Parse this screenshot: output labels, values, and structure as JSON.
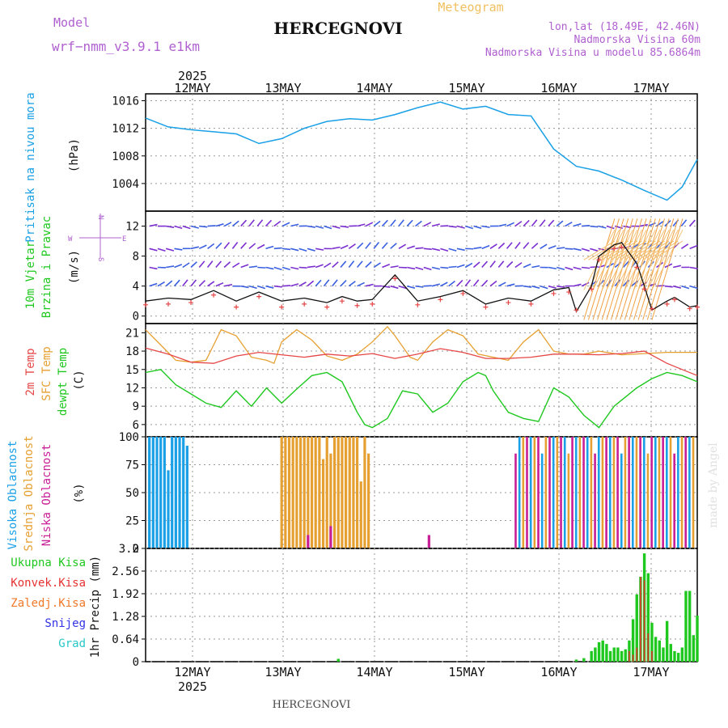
{
  "header": {
    "model_label": "Model",
    "model_name": "wrf−nmm_v3.9.1 e1km",
    "site_title": "HERCEGNOVI",
    "chart_kind": "Meteogram",
    "location_line1": "lon,lat (18.49E, 42.46N)",
    "location_line2": "Nadmorska Visina 60m",
    "location_line3": "Nadmorska Visina u modelu 85.6864m",
    "year_label": "2025"
  },
  "footer": {
    "site_title": "HERCEGNOVI",
    "year_label": "2025",
    "credit": "made by Angel"
  },
  "colors": {
    "pressure": "#19a0e6",
    "t2m": "#e64646",
    "tsfc": "#e6a032",
    "dewpoint": "#1ec81e",
    "cloud_high": "#19a0e6",
    "cloud_mid": "#e6a032",
    "cloud_low": "#c81e96",
    "precip_total": "#1ec81e",
    "precip_conv": "#e63232",
    "precip_ice": "#f07828",
    "precip_snow": "#3232e6",
    "precip_grad": "#28c8c8",
    "wind_purple": "#7b2fd0",
    "gust": "#e64646"
  },
  "chart_data": [
    {
      "type": "line",
      "name": "pressure-panel",
      "ylabel_title": "Pritisak na nivou mora",
      "ylabel_unit": "(hPa)",
      "x_tick_labels": [
        "12MAY",
        "13MAY",
        "14MAY",
        "15MAY",
        "16MAY",
        "17MAY"
      ],
      "xlim_hours": [
        0,
        146
      ],
      "ylim": [
        1000,
        1017
      ],
      "y_ticks": [
        1004,
        1008,
        1012,
        1016
      ],
      "series": [
        {
          "key": "pressure",
          "x": [
            0,
            6,
            12,
            18,
            24,
            30,
            36,
            42,
            48,
            54,
            60,
            66,
            72,
            78,
            84,
            90,
            96,
            102,
            108,
            114,
            120,
            126,
            132,
            138,
            142,
            146
          ],
          "values": [
            1013.5,
            1012.2,
            1011.8,
            1011.5,
            1011.2,
            1009.8,
            1010.5,
            1012.0,
            1013.0,
            1013.4,
            1013.2,
            1014.0,
            1015.0,
            1015.8,
            1014.8,
            1015.2,
            1014.0,
            1013.8,
            1009.0,
            1006.5,
            1005.8,
            1004.5,
            1003.0,
            1001.6,
            1003.5,
            1007.5
          ]
        }
      ]
    },
    {
      "type": "line",
      "name": "wind-panel",
      "ylabel_title_1": "10m Vjetar",
      "ylabel_title_2": "Brzina i Pravac",
      "ylabel_unit": "(m/s)",
      "compass": {
        "north": "N",
        "west": "W",
        "east": "E",
        "south": "S"
      },
      "ylim": [
        -1,
        14
      ],
      "y_ticks": [
        0,
        4,
        8,
        12
      ],
      "series": [
        {
          "key": "wind_speed",
          "x": [
            0,
            6,
            12,
            18,
            24,
            30,
            36,
            42,
            48,
            52,
            56,
            60,
            66,
            72,
            78,
            84,
            90,
            96,
            102,
            108,
            112,
            114,
            118,
            120,
            124,
            126,
            130,
            132,
            134,
            138,
            140,
            144,
            146
          ],
          "values": [
            2.0,
            2.4,
            2.2,
            3.4,
            2.0,
            3.2,
            2.0,
            2.4,
            1.8,
            2.6,
            2.0,
            2.2,
            5.5,
            2.0,
            2.6,
            3.4,
            1.6,
            2.4,
            2.0,
            3.5,
            3.8,
            0.6,
            4.0,
            8.0,
            9.5,
            9.8,
            7.0,
            4.0,
            0.8,
            2.0,
            2.5,
            1.2,
            1.4
          ]
        },
        {
          "key": "gust",
          "x": [
            0,
            6,
            12,
            18,
            24,
            30,
            36,
            42,
            48,
            52,
            56,
            60,
            66,
            72,
            78,
            84,
            90,
            96,
            102,
            108,
            112,
            114,
            118,
            120,
            124,
            126,
            130,
            132,
            134,
            138,
            140,
            144,
            146
          ],
          "values": [
            1.5,
            1.6,
            1.8,
            2.8,
            1.2,
            2.6,
            1.2,
            1.6,
            1.2,
            2.0,
            1.4,
            1.6,
            5.0,
            1.5,
            2.2,
            3.0,
            1.2,
            1.8,
            1.6,
            3.0,
            3.2,
            0.8,
            3.6,
            7.5,
            9.0,
            9.2,
            6.5,
            3.6,
            1.0,
            1.6,
            2.2,
            1.0,
            1.2
          ]
        }
      ]
    },
    {
      "type": "line",
      "name": "temperature-panel",
      "ylabel_title_1": "2m Temp",
      "ylabel_title_2": "SFC Temp",
      "ylabel_title_3": "dewpt Temp",
      "ylabel_unit": "(C)",
      "ylim": [
        4,
        22.5
      ],
      "y_ticks": [
        6,
        9,
        12,
        15,
        18,
        21
      ],
      "series": [
        {
          "key": "t2m",
          "x": [
            0,
            6,
            12,
            18,
            24,
            30,
            36,
            42,
            48,
            54,
            60,
            66,
            72,
            78,
            84,
            90,
            96,
            102,
            108,
            114,
            120,
            126,
            132,
            138,
            142,
            146
          ],
          "values": [
            18.5,
            17.5,
            16.2,
            16.0,
            17.2,
            17.8,
            17.4,
            17.0,
            17.5,
            17.2,
            17.6,
            16.8,
            17.5,
            18.4,
            17.8,
            16.8,
            16.8,
            17.0,
            17.5,
            17.5,
            17.4,
            17.6,
            18.0,
            16.0,
            15.0,
            14.0
          ]
        },
        {
          "key": "tsfc",
          "x": [
            0,
            4,
            8,
            12,
            16,
            18,
            20,
            24,
            28,
            32,
            34,
            36,
            40,
            44,
            48,
            52,
            56,
            60,
            64,
            66,
            70,
            72,
            76,
            80,
            84,
            88,
            92,
            96,
            100,
            104,
            108,
            112,
            116,
            120,
            126,
            132,
            138,
            146
          ],
          "values": [
            21.5,
            19.0,
            16.5,
            16.2,
            16.5,
            19.0,
            21.5,
            20.5,
            17.0,
            16.5,
            16.0,
            19.5,
            21.5,
            19.8,
            17.2,
            16.5,
            17.5,
            19.5,
            22.0,
            20.5,
            17.0,
            16.5,
            19.5,
            21.5,
            20.5,
            17.5,
            17.0,
            16.5,
            19.5,
            21.5,
            18.0,
            17.5,
            17.5,
            18.0,
            17.4,
            17.6,
            17.8,
            17.8
          ]
        },
        {
          "key": "dewpoint",
          "x": [
            0,
            4,
            8,
            12,
            16,
            20,
            24,
            28,
            32,
            36,
            40,
            44,
            48,
            52,
            56,
            58,
            60,
            64,
            68,
            72,
            76,
            80,
            84,
            88,
            90,
            92,
            96,
            100,
            104,
            108,
            112,
            116,
            120,
            124,
            126,
            130,
            134,
            138,
            142,
            146
          ],
          "values": [
            14.5,
            15.0,
            12.5,
            11.0,
            9.5,
            8.8,
            11.5,
            9.0,
            12.0,
            9.5,
            11.8,
            14.0,
            14.5,
            13.0,
            8.0,
            6.0,
            5.5,
            7.0,
            11.5,
            11.0,
            8.0,
            9.5,
            13.0,
            14.5,
            14.0,
            11.5,
            8.0,
            7.0,
            6.5,
            12.0,
            10.5,
            7.5,
            5.5,
            9.0,
            10.0,
            12.0,
            13.5,
            14.5,
            14.0,
            13.0
          ]
        }
      ]
    },
    {
      "type": "bar",
      "name": "cloud-panel",
      "ylabel_title_1": "Visoka Oblacnost",
      "ylabel_title_2": "Srednja Oblacnost",
      "ylabel_title_3": "Niska Oblacnost",
      "ylabel_unit": "(%)",
      "ylim": [
        0,
        100
      ],
      "y_ticks": [
        0,
        25,
        50,
        75,
        100
      ],
      "series": [
        {
          "key": "cloud_high",
          "x": [
            1,
            2,
            3,
            4,
            5,
            6,
            7,
            8,
            9,
            10,
            11
          ],
          "values": [
            100,
            100,
            100,
            100,
            100,
            70,
            100,
            100,
            100,
            100,
            92
          ]
        },
        {
          "key": "cloud_mid",
          "x": [
            36,
            37,
            38,
            39,
            40,
            41,
            42,
            43,
            44,
            45,
            46,
            47,
            48,
            49,
            50,
            51,
            52,
            53,
            54,
            55,
            56,
            57,
            58,
            59
          ],
          "values": [
            100,
            100,
            100,
            100,
            100,
            100,
            100,
            100,
            100,
            100,
            100,
            80,
            100,
            85,
            100,
            100,
            100,
            100,
            100,
            100,
            100,
            60,
            100,
            85
          ]
        },
        {
          "key": "cloud_low",
          "x": [
            43,
            49,
            75
          ],
          "values": [
            12,
            20,
            12
          ]
        }
      ]
    },
    {
      "type": "bar",
      "name": "precip-panel",
      "legend": [
        "Ukupna Kisa",
        "Konvek.Kisa",
        "Zaledj.Kisa",
        "Snijeg",
        "Grad"
      ],
      "ylabel_unit": "1hr Precip (mm)",
      "ylim": [
        0,
        3.2
      ],
      "y_ticks": [
        0,
        0.64,
        1.28,
        1.92,
        2.56,
        3.2
      ],
      "series": [
        {
          "key": "precip_total",
          "x": [
            51,
            114,
            116,
            118,
            119,
            120,
            121,
            122,
            123,
            124,
            125,
            126,
            127,
            128,
            129,
            130,
            131,
            132,
            133,
            134,
            135,
            136,
            137,
            138,
            139,
            140,
            141,
            142,
            143,
            144,
            145,
            146
          ],
          "values": [
            0.08,
            0.06,
            0.1,
            0.3,
            0.4,
            0.55,
            0.6,
            0.5,
            0.3,
            0.4,
            0.4,
            0.3,
            0.35,
            0.6,
            1.2,
            1.9,
            2.4,
            3.06,
            2.5,
            1.1,
            0.7,
            0.6,
            0.4,
            1.15,
            0.5,
            0.3,
            0.25,
            0.4,
            2.0,
            2.0,
            0.75,
            1.3
          ]
        },
        {
          "key": "precip_conv",
          "x": [
            128,
            129,
            130,
            131,
            132,
            133,
            134
          ],
          "values": [
            0.3,
            0.2,
            0.4,
            2.4,
            2.3,
            0.8,
            0.3
          ]
        }
      ]
    }
  ]
}
